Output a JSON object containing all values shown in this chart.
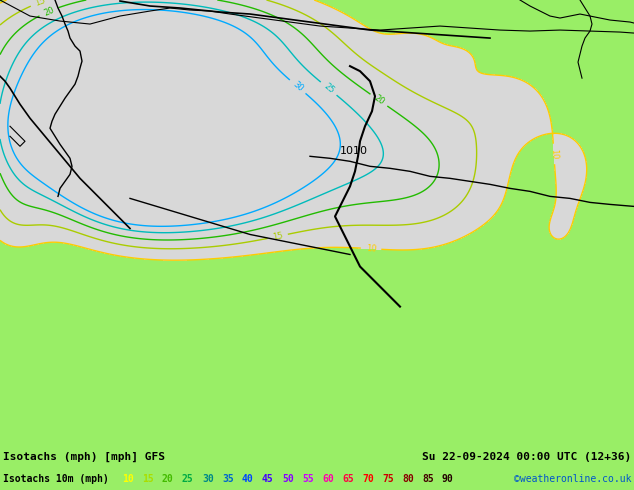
{
  "title_left": "Isotachs (mph) [mph] GFS",
  "title_right": "Su 22-09-2024 00:00 UTC (12+36)",
  "subtitle_left": "Isotachs 10m (mph)",
  "copyright": "©weatheronline.co.uk",
  "bg_color": "#99ee66",
  "gray_area_color": "#d8d8d8",
  "legend_values": [
    10,
    15,
    20,
    25,
    30,
    35,
    40,
    45,
    50,
    55,
    60,
    65,
    70,
    75,
    80,
    85,
    90
  ],
  "legend_colors": [
    "#ffff00",
    "#bbdd00",
    "#44cc00",
    "#00bbbb",
    "#00aaff",
    "#0066ff",
    "#0033ff",
    "#6600ff",
    "#aa00ff",
    "#ff00cc",
    "#ff0066",
    "#ff0000",
    "#cc0000",
    "#880000",
    "#440000",
    "#220000",
    "#110000"
  ],
  "contour_line_colors": {
    "10": "#ffcc00",
    "15": "#aacc00",
    "20": "#00aa00",
    "25": "#00bbbb",
    "30": "#00aaff"
  },
  "pressure_label": "1010",
  "font_size_title": 8,
  "font_size_legend": 7,
  "font_size_labels": 6
}
